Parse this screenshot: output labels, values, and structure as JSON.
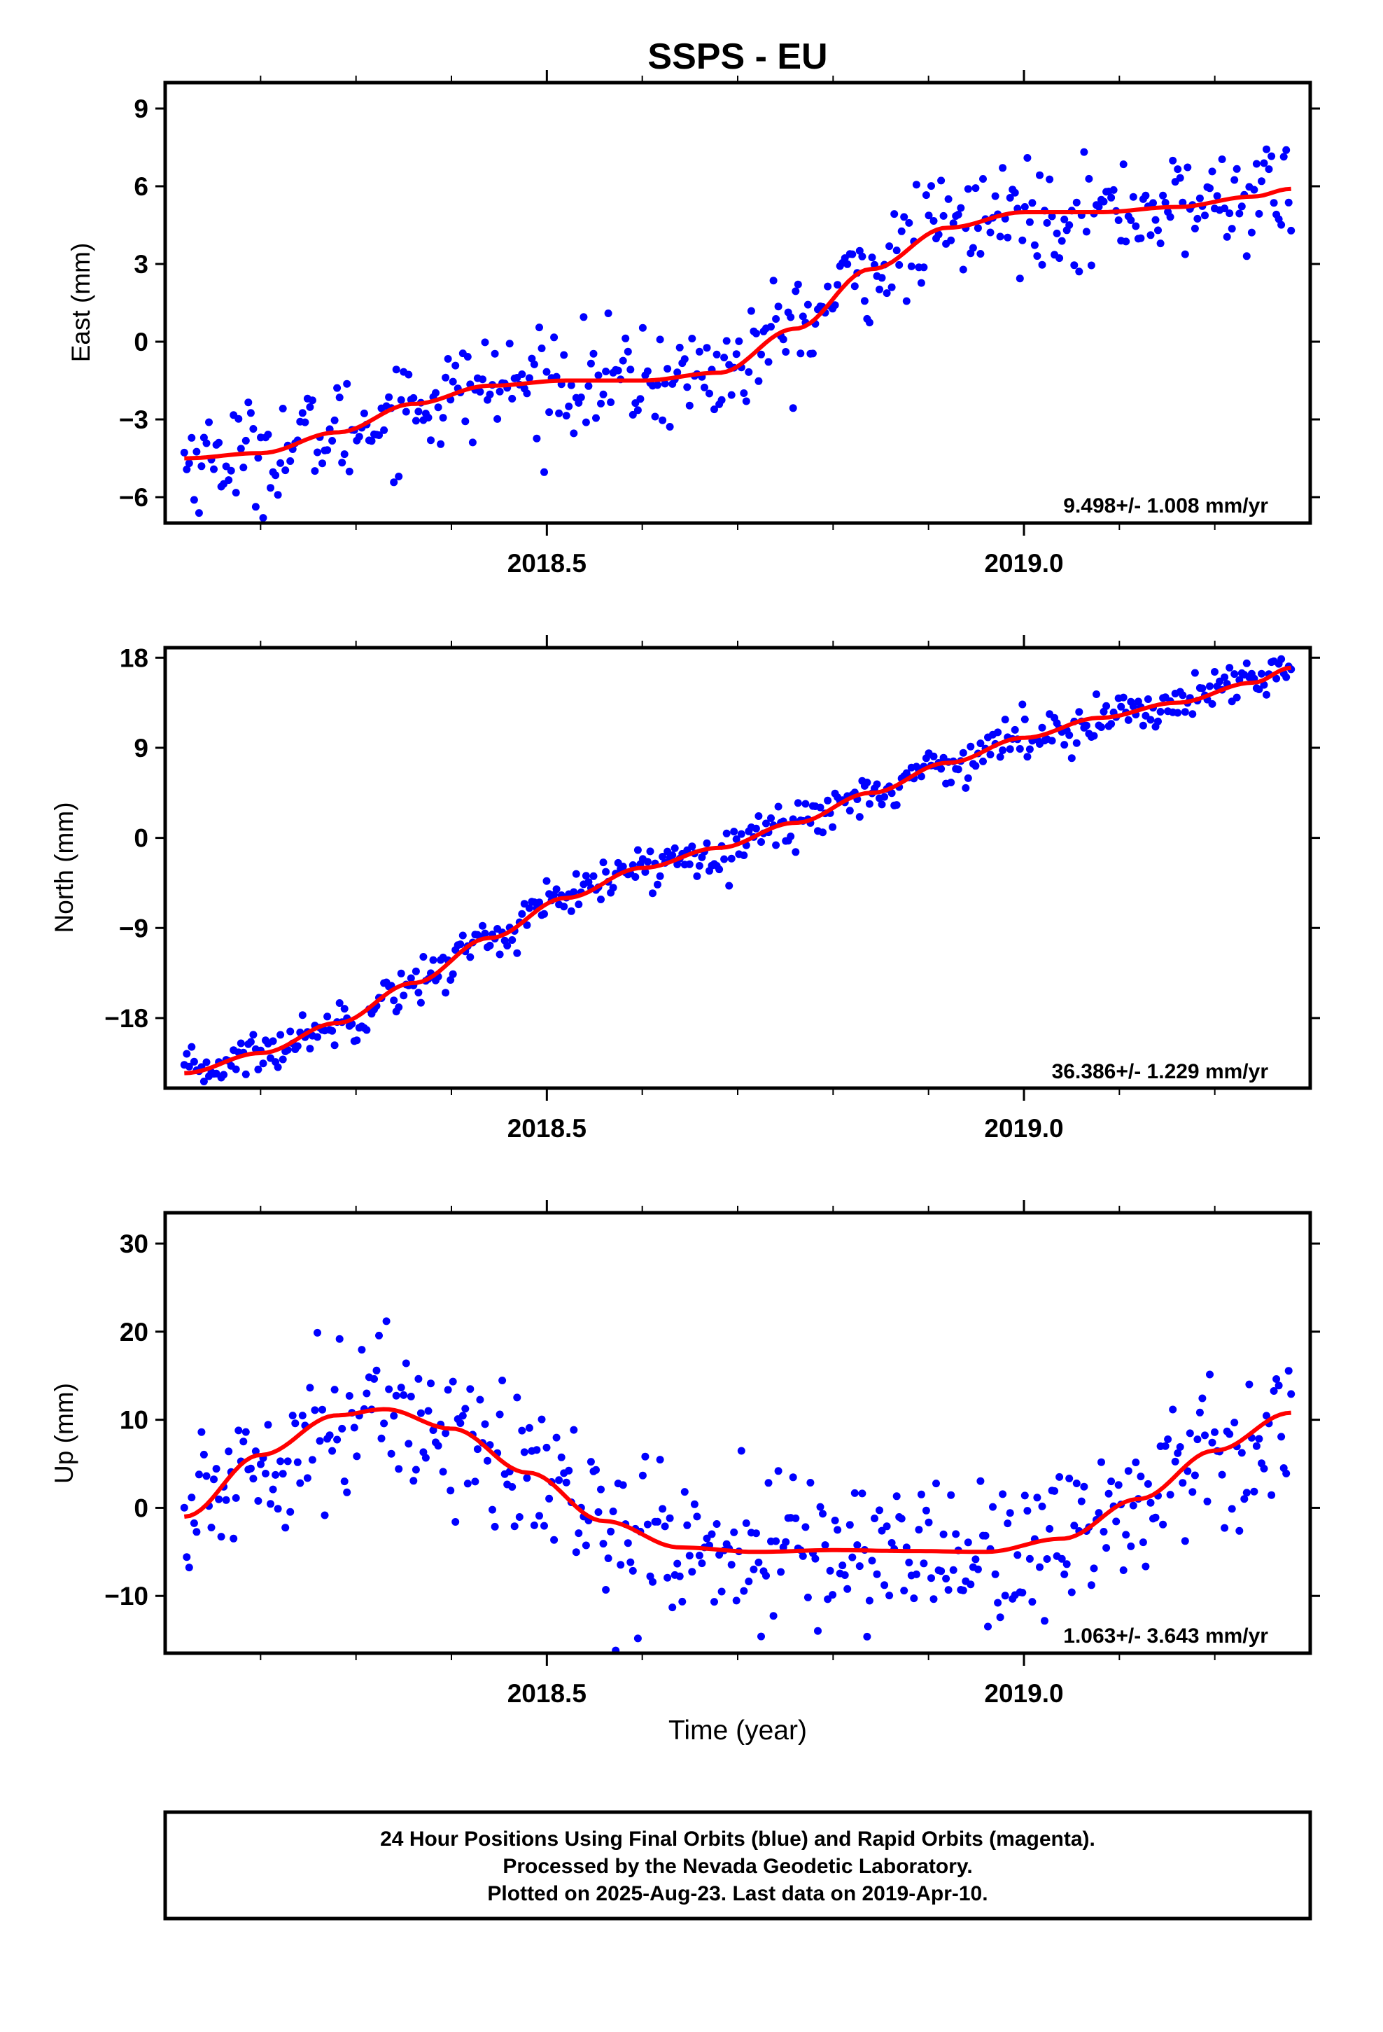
{
  "title": "SSPS - EU",
  "footer": {
    "lines": [
      "24 Hour Positions Using Final Orbits (blue) and Rapid Orbits (magenta).",
      "Processed by the Nevada Geodetic Laboratory.",
      "Plotted on 2025-Aug-23. Last data on 2019-Apr-10."
    ]
  },
  "xlabel": "Time (year)",
  "colors": {
    "points": "#0000ff",
    "fit": "#ff0000",
    "frame": "#000000"
  },
  "chart_data": [
    {
      "type": "scatter",
      "ylabel": "East (mm)",
      "xlim": [
        2018.1,
        2019.3
      ],
      "ylim": [
        -7,
        10
      ],
      "yticks": [
        9,
        6,
        3,
        0,
        -3,
        -6
      ],
      "ytick_labels": [
        "9",
        "6",
        "3",
        "0",
        "−3",
        "−6"
      ],
      "xticks": [
        2018.5,
        2019.0
      ],
      "xtick_labels": [
        "2018.5",
        "2019.0"
      ],
      "rate_label": "9.498+/- 1.008 mm/yr",
      "grid": false,
      "fit_x": [
        2018.12,
        2018.2,
        2018.28,
        2018.36,
        2018.44,
        2018.52,
        2018.6,
        2018.68,
        2018.76,
        2018.84,
        2018.92,
        2019.0,
        2019.08,
        2019.16,
        2019.24,
        2019.28
      ],
      "fit_y": [
        -4.5,
        -4.3,
        -3.5,
        -2.4,
        -1.7,
        -1.5,
        -1.5,
        -1.2,
        0.5,
        2.8,
        4.4,
        5.0,
        5.0,
        5.2,
        5.6,
        5.9
      ],
      "point_noise": 1.0,
      "point_count": 450
    },
    {
      "type": "scatter",
      "ylabel": "North (mm)",
      "xlim": [
        2018.1,
        2019.3
      ],
      "ylim": [
        -25,
        19
      ],
      "yticks": [
        18,
        9,
        0,
        -9,
        -18
      ],
      "ytick_labels": [
        "18",
        "9",
        "0",
        "−9",
        "−18"
      ],
      "xticks": [
        2018.5,
        2019.0
      ],
      "xtick_labels": [
        "2018.5",
        "2019.0"
      ],
      "rate_label": "36.386+/- 1.229 mm/yr",
      "grid": false,
      "fit_x": [
        2018.12,
        2018.2,
        2018.28,
        2018.36,
        2018.44,
        2018.52,
        2018.6,
        2018.68,
        2018.76,
        2018.84,
        2018.92,
        2019.0,
        2019.08,
        2019.16,
        2019.24,
        2019.28
      ],
      "fit_y": [
        -23.5,
        -21.5,
        -18.5,
        -14.5,
        -10.0,
        -6.0,
        -3.0,
        -1.0,
        1.5,
        4.5,
        7.5,
        10.0,
        12.0,
        13.5,
        15.5,
        17.0
      ],
      "point_noise": 1.1,
      "point_count": 450
    },
    {
      "type": "scatter",
      "ylabel": "Up (mm)",
      "xlim": [
        2018.1,
        2019.3
      ],
      "ylim": [
        -16.5,
        33.5
      ],
      "yticks": [
        30,
        20,
        10,
        0,
        -10
      ],
      "ytick_labels": [
        "30",
        "20",
        "10",
        "0",
        "−10"
      ],
      "xticks": [
        2018.5,
        2019.0
      ],
      "xtick_labels": [
        "2018.5",
        "2019.0"
      ],
      "rate_label": "1.063+/- 3.643 mm/yr",
      "grid": false,
      "fit_x": [
        2018.12,
        2018.2,
        2018.28,
        2018.33,
        2018.4,
        2018.48,
        2018.56,
        2018.64,
        2018.72,
        2018.8,
        2018.88,
        2018.96,
        2019.04,
        2019.12,
        2019.2,
        2019.28
      ],
      "fit_y": [
        -1.0,
        6.0,
        10.5,
        11.2,
        9.0,
        4.0,
        -1.5,
        -4.5,
        -5.0,
        -4.8,
        -4.9,
        -5.0,
        -3.5,
        1.0,
        6.5,
        10.8
      ],
      "point_noise": 4.5,
      "point_count": 450
    }
  ]
}
